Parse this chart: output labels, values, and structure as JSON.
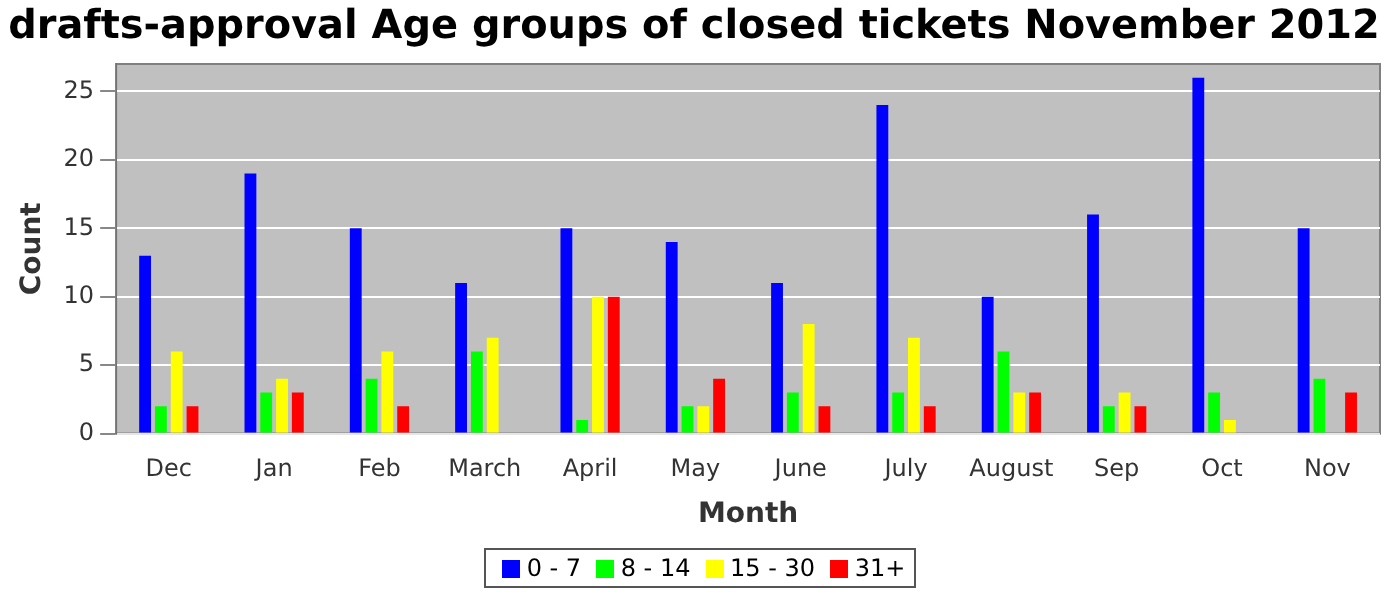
{
  "chart_data": {
    "type": "bar",
    "title": "drafts-approval Age groups of closed tickets November 2012",
    "xlabel": "Month",
    "ylabel": "Count",
    "categories": [
      "Dec",
      "Jan",
      "Feb",
      "March",
      "April",
      "May",
      "June",
      "July",
      "August",
      "Sep",
      "Oct",
      "Nov"
    ],
    "series": [
      {
        "name": "0 - 7",
        "color": "#0000ff",
        "values": [
          13,
          19,
          15,
          11,
          15,
          14,
          11,
          24,
          10,
          16,
          26,
          15
        ]
      },
      {
        "name": "8 - 14",
        "color": "#00ff00",
        "values": [
          2,
          3,
          4,
          6,
          1,
          2,
          3,
          3,
          6,
          2,
          3,
          4
        ]
      },
      {
        "name": "15 - 30",
        "color": "#ffff00",
        "values": [
          6,
          4,
          6,
          7,
          10,
          2,
          8,
          7,
          3,
          3,
          1,
          0
        ]
      },
      {
        "name": "31+",
        "color": "#ff0000",
        "values": [
          2,
          3,
          2,
          0,
          10,
          4,
          2,
          2,
          3,
          2,
          0,
          3
        ]
      }
    ],
    "ylim": [
      0,
      27
    ],
    "yticks": [
      0,
      5,
      10,
      15,
      20,
      25
    ],
    "grid": "y",
    "legend": "bottom"
  }
}
